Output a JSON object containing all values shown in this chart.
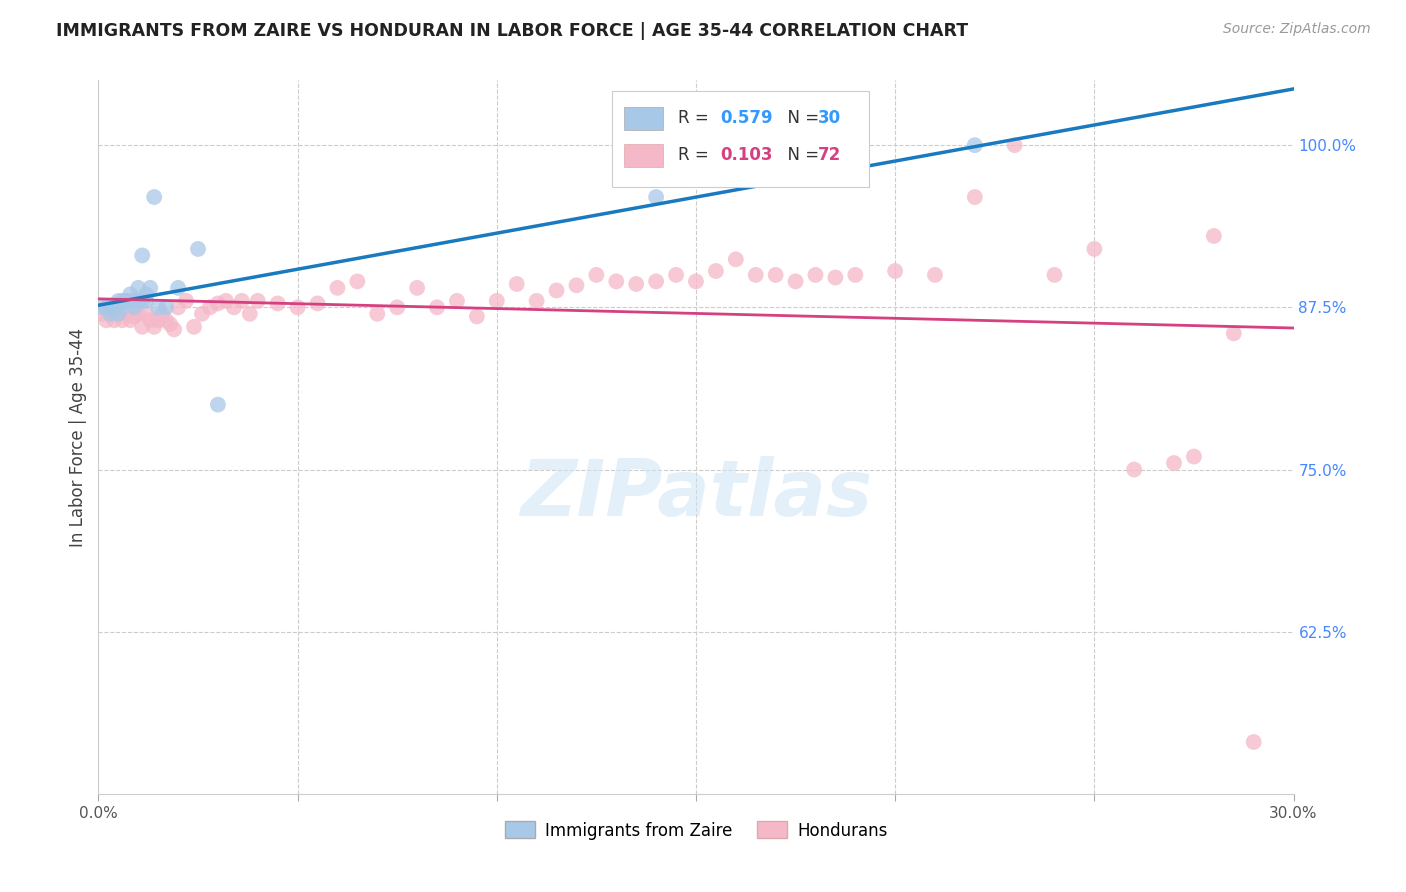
{
  "title": "IMMIGRANTS FROM ZAIRE VS HONDURAN IN LABOR FORCE | AGE 35-44 CORRELATION CHART",
  "source": "Source: ZipAtlas.com",
  "ylabel": "In Labor Force | Age 35-44",
  "xlim": [
    0.0,
    0.3
  ],
  "ylim": [
    0.5,
    1.05
  ],
  "xticks": [
    0.0,
    0.05,
    0.1,
    0.15,
    0.2,
    0.25,
    0.3
  ],
  "xticklabels": [
    "0.0%",
    "",
    "",
    "",
    "",
    "",
    "30.0%"
  ],
  "yticks": [
    0.625,
    0.75,
    0.875,
    1.0
  ],
  "yticklabels": [
    "62.5%",
    "75.0%",
    "87.5%",
    "100.0%"
  ],
  "blue_R": 0.579,
  "blue_N": 30,
  "pink_R": 0.103,
  "pink_N": 72,
  "blue_color": "#a8c8e8",
  "pink_color": "#f4b8c8",
  "blue_line_color": "#1a7abf",
  "pink_line_color": "#d44080",
  "legend_blue_label": "Immigrants from Zaire",
  "legend_pink_label": "Hondurans",
  "blue_x": [
    0.001,
    0.002,
    0.003,
    0.003,
    0.004,
    0.005,
    0.005,
    0.006,
    0.006,
    0.007,
    0.007,
    0.008,
    0.008,
    0.009,
    0.009,
    0.01,
    0.01,
    0.011,
    0.011,
    0.012,
    0.012,
    0.013,
    0.014,
    0.015,
    0.017,
    0.02,
    0.025,
    0.03,
    0.14,
    0.22
  ],
  "blue_y": [
    0.875,
    0.875,
    0.87,
    0.875,
    0.875,
    0.88,
    0.87,
    0.88,
    0.875,
    0.88,
    0.88,
    0.885,
    0.88,
    0.88,
    0.875,
    0.89,
    0.88,
    0.915,
    0.88,
    0.885,
    0.88,
    0.89,
    0.96,
    0.875,
    0.875,
    0.89,
    0.92,
    0.8,
    0.96,
    1.0
  ],
  "pink_x": [
    0.001,
    0.002,
    0.003,
    0.004,
    0.005,
    0.006,
    0.007,
    0.008,
    0.009,
    0.01,
    0.011,
    0.012,
    0.013,
    0.014,
    0.015,
    0.016,
    0.017,
    0.018,
    0.019,
    0.02,
    0.022,
    0.024,
    0.026,
    0.028,
    0.03,
    0.032,
    0.034,
    0.036,
    0.038,
    0.04,
    0.045,
    0.05,
    0.055,
    0.06,
    0.065,
    0.07,
    0.075,
    0.08,
    0.085,
    0.09,
    0.095,
    0.1,
    0.105,
    0.11,
    0.115,
    0.12,
    0.125,
    0.13,
    0.135,
    0.14,
    0.145,
    0.15,
    0.155,
    0.16,
    0.165,
    0.17,
    0.175,
    0.18,
    0.185,
    0.19,
    0.2,
    0.21,
    0.22,
    0.23,
    0.24,
    0.25,
    0.26,
    0.27,
    0.275,
    0.28,
    0.285,
    0.29
  ],
  "pink_y": [
    0.87,
    0.865,
    0.87,
    0.865,
    0.87,
    0.865,
    0.87,
    0.865,
    0.868,
    0.87,
    0.86,
    0.87,
    0.865,
    0.86,
    0.865,
    0.87,
    0.865,
    0.862,
    0.858,
    0.875,
    0.88,
    0.86,
    0.87,
    0.875,
    0.878,
    0.88,
    0.875,
    0.88,
    0.87,
    0.88,
    0.878,
    0.875,
    0.878,
    0.89,
    0.895,
    0.87,
    0.875,
    0.89,
    0.875,
    0.88,
    0.868,
    0.88,
    0.893,
    0.88,
    0.888,
    0.892,
    0.9,
    0.895,
    0.893,
    0.895,
    0.9,
    0.895,
    0.903,
    0.912,
    0.9,
    0.9,
    0.895,
    0.9,
    0.898,
    0.9,
    0.903,
    0.9,
    0.96,
    1.0,
    0.9,
    0.92,
    0.75,
    0.755,
    0.76,
    0.93,
    0.855,
    0.54
  ]
}
